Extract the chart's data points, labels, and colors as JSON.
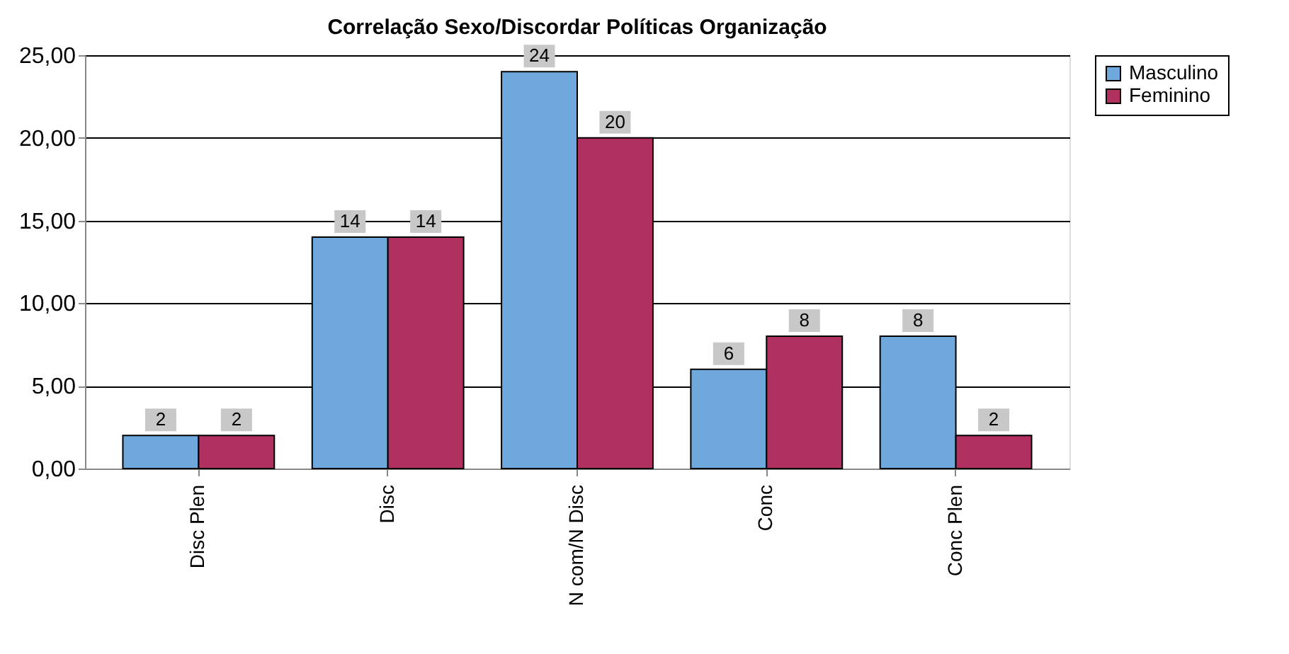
{
  "chart_data": {
    "type": "bar",
    "title": "Correlação Sexo/Discordar Políticas Organização",
    "categories": [
      "Disc Plen",
      "Disc",
      "N com/N Disc",
      "Conc",
      "Conc Plen"
    ],
    "series": [
      {
        "name": "Masculino",
        "color": "#6fa8dc",
        "values": [
          2,
          14,
          24,
          6,
          8
        ]
      },
      {
        "name": "Feminino",
        "color": "#b03060",
        "values": [
          2,
          14,
          20,
          8,
          2
        ]
      }
    ],
    "ylim": [
      0,
      25
    ],
    "yticks": [
      {
        "value": 0,
        "label": "0,00"
      },
      {
        "value": 5,
        "label": "5,00"
      },
      {
        "value": 10,
        "label": "10,00"
      },
      {
        "value": 15,
        "label": "15,00"
      },
      {
        "value": 20,
        "label": "20,00"
      },
      {
        "value": 25,
        "label": "25,00"
      }
    ],
    "grid": "y",
    "legend": "right",
    "data_labels": true
  }
}
